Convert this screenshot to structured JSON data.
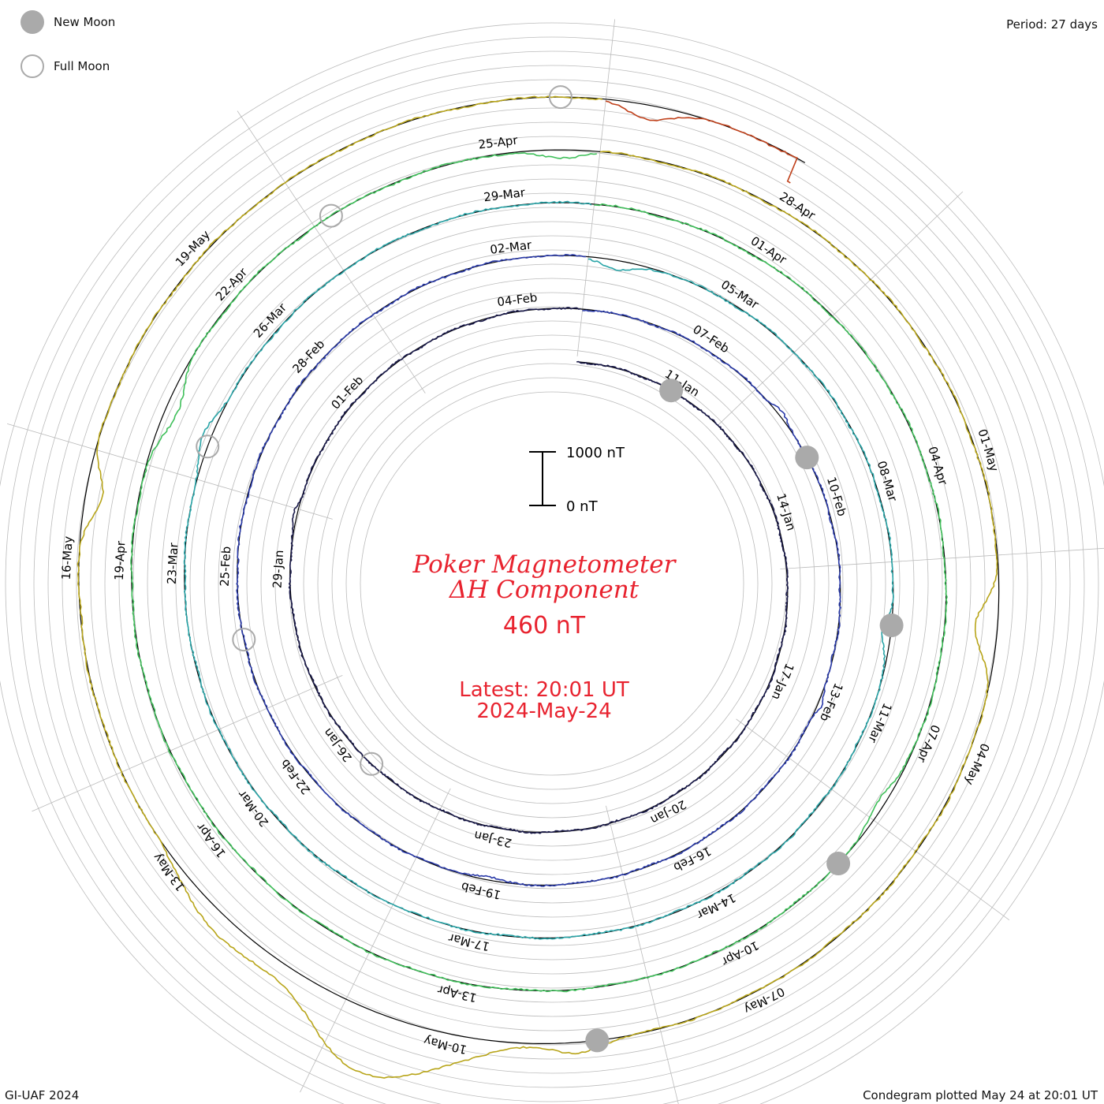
{
  "legend": {
    "new_moon": "New Moon",
    "full_moon": "Full Moon"
  },
  "period_label": "Period: 27 days",
  "title": {
    "line1": "Poker Magnetometer",
    "line2": "ΔH Component",
    "value": "460 nT",
    "latest_time": "Latest: 20:01 UT",
    "latest_date": "2024-May-24"
  },
  "scale_bar": {
    "top_label": "1000 nT",
    "bottom_label": "0 nT",
    "top_value": 1000,
    "bottom_value": 0
  },
  "footer": {
    "left": "GI-UAF 2024",
    "right": "Condegram plotted May 24 at 20:01 UT"
  },
  "colors": {
    "grid": "#bbbbbb",
    "baseline": "#000000",
    "moon": "#aaaaaa",
    "title": "#e8232f"
  },
  "chart_data": {
    "type": "line",
    "layout": "spiral condegram",
    "period_days": 27,
    "unit": "nT",
    "cycles": [
      {
        "name": "",
        "start": "2024-01-09",
        "color": "#1a1a4a"
      },
      {
        "name": "",
        "start": "2024-02-05",
        "color": "#2a3aa8"
      },
      {
        "name": "",
        "start": "2024-03-03",
        "color": "#2aa5a8"
      },
      {
        "name": "",
        "start": "2024-03-30",
        "color": "#3fbf5a"
      },
      {
        "name": "",
        "start": "2024-04-26",
        "color": "#b8a51a"
      },
      {
        "name": "",
        "start": "2024-05-23",
        "color": "#c0401a"
      }
    ],
    "date_labels": [
      {
        "text": "11-Jan",
        "cycle": 0,
        "day": 2
      },
      {
        "text": "14-Jan",
        "cycle": 0,
        "day": 5
      },
      {
        "text": "17-Jan",
        "cycle": 0,
        "day": 8
      },
      {
        "text": "20-Jan",
        "cycle": 0,
        "day": 11
      },
      {
        "text": "23-Jan",
        "cycle": 0,
        "day": 14
      },
      {
        "text": "26-Jan",
        "cycle": 0,
        "day": 17
      },
      {
        "text": "29-Jan",
        "cycle": 0,
        "day": 20
      },
      {
        "text": "01-Feb",
        "cycle": 0,
        "day": 23
      },
      {
        "text": "04-Feb",
        "cycle": 0,
        "day": 26
      },
      {
        "text": "07-Feb",
        "cycle": 1,
        "day": 2
      },
      {
        "text": "10-Feb",
        "cycle": 1,
        "day": 5
      },
      {
        "text": "13-Feb",
        "cycle": 1,
        "day": 8
      },
      {
        "text": "16-Feb",
        "cycle": 1,
        "day": 11
      },
      {
        "text": "19-Feb",
        "cycle": 1,
        "day": 14
      },
      {
        "text": "22-Feb",
        "cycle": 1,
        "day": 17
      },
      {
        "text": "25-Feb",
        "cycle": 1,
        "day": 20
      },
      {
        "text": "28-Feb",
        "cycle": 1,
        "day": 23
      },
      {
        "text": "02-Mar",
        "cycle": 1,
        "day": 26
      },
      {
        "text": "05-Mar",
        "cycle": 2,
        "day": 2
      },
      {
        "text": "08-Mar",
        "cycle": 2,
        "day": 5
      },
      {
        "text": "11-Mar",
        "cycle": 2,
        "day": 8
      },
      {
        "text": "14-Mar",
        "cycle": 2,
        "day": 11
      },
      {
        "text": "17-Mar",
        "cycle": 2,
        "day": 14
      },
      {
        "text": "20-Mar",
        "cycle": 2,
        "day": 17
      },
      {
        "text": "23-Mar",
        "cycle": 2,
        "day": 20
      },
      {
        "text": "26-Mar",
        "cycle": 2,
        "day": 23
      },
      {
        "text": "29-Mar",
        "cycle": 2,
        "day": 26
      },
      {
        "text": "01-Apr",
        "cycle": 3,
        "day": 2
      },
      {
        "text": "04-Apr",
        "cycle": 3,
        "day": 5
      },
      {
        "text": "07-Apr",
        "cycle": 3,
        "day": 8
      },
      {
        "text": "10-Apr",
        "cycle": 3,
        "day": 11
      },
      {
        "text": "13-Apr",
        "cycle": 3,
        "day": 14
      },
      {
        "text": "16-Apr",
        "cycle": 3,
        "day": 17
      },
      {
        "text": "19-Apr",
        "cycle": 3,
        "day": 20
      },
      {
        "text": "22-Apr",
        "cycle": 3,
        "day": 23
      },
      {
        "text": "25-Apr",
        "cycle": 3,
        "day": 26
      },
      {
        "text": "28-Apr",
        "cycle": 4,
        "day": 2
      },
      {
        "text": "01-May",
        "cycle": 4,
        "day": 5
      },
      {
        "text": "04-May",
        "cycle": 4,
        "day": 8
      },
      {
        "text": "07-May",
        "cycle": 4,
        "day": 11
      },
      {
        "text": "10-May",
        "cycle": 4,
        "day": 14
      },
      {
        "text": "13-May",
        "cycle": 4,
        "day": 17
      },
      {
        "text": "16-May",
        "cycle": 4,
        "day": 20
      },
      {
        "text": "19-May",
        "cycle": 4,
        "day": 23
      }
    ],
    "new_moons": [
      {
        "cycle": 0,
        "day": 1.9
      },
      {
        "cycle": 1,
        "day": 4.3
      },
      {
        "cycle": 2,
        "day": 6.8
      },
      {
        "cycle": 3,
        "day": 9.6
      },
      {
        "cycle": 4,
        "day": 12.6
      }
    ],
    "full_moons": [
      {
        "cycle": 0,
        "day": 16.4
      },
      {
        "cycle": 1,
        "day": 19.0
      },
      {
        "cycle": 2,
        "day": 21.4
      },
      {
        "cycle": 3,
        "day": 24.2
      },
      {
        "cycle": 4,
        "day": 26.6
      }
    ],
    "features": [
      {
        "cycle": 0,
        "day": 20.9,
        "value": -70,
        "width": 0.2
      },
      {
        "cycle": 1,
        "day": 3.5,
        "value": -80,
        "width": 0.2
      },
      {
        "cycle": 1,
        "day": 8.1,
        "value": -70,
        "width": 0.15
      },
      {
        "cycle": 1,
        "day": 14.0,
        "value": 60,
        "width": 0.3
      },
      {
        "cycle": 2,
        "day": 0.4,
        "value": 180,
        "width": 0.3
      },
      {
        "cycle": 2,
        "day": 6.9,
        "value": 160,
        "width": 0.25
      },
      {
        "cycle": 2,
        "day": 21.5,
        "value": -150,
        "width": 0.35
      },
      {
        "cycle": 3,
        "day": 8.8,
        "value": 140,
        "width": 0.3
      },
      {
        "cycle": 3,
        "day": 21.6,
        "value": 220,
        "width": 0.4
      },
      {
        "cycle": 3,
        "day": 26.6,
        "value": 160,
        "width": 0.3
      },
      {
        "cycle": 4,
        "day": 6.7,
        "value": 420,
        "width": 0.35
      },
      {
        "cycle": 4,
        "day": 12.8,
        "value": -180,
        "width": 0.3
      },
      {
        "cycle": 4,
        "day": 14.6,
        "value": -1150,
        "width": 0.8
      },
      {
        "cycle": 4,
        "day": 16.3,
        "value": -350,
        "width": 0.6
      },
      {
        "cycle": 4,
        "day": 20.6,
        "value": 300,
        "width": 0.3
      },
      {
        "cycle": 5,
        "day": 0.4,
        "value": 250,
        "width": 0.3
      }
    ],
    "last_point": {
      "cycle": 5,
      "day": 1.85,
      "value": 460
    }
  }
}
